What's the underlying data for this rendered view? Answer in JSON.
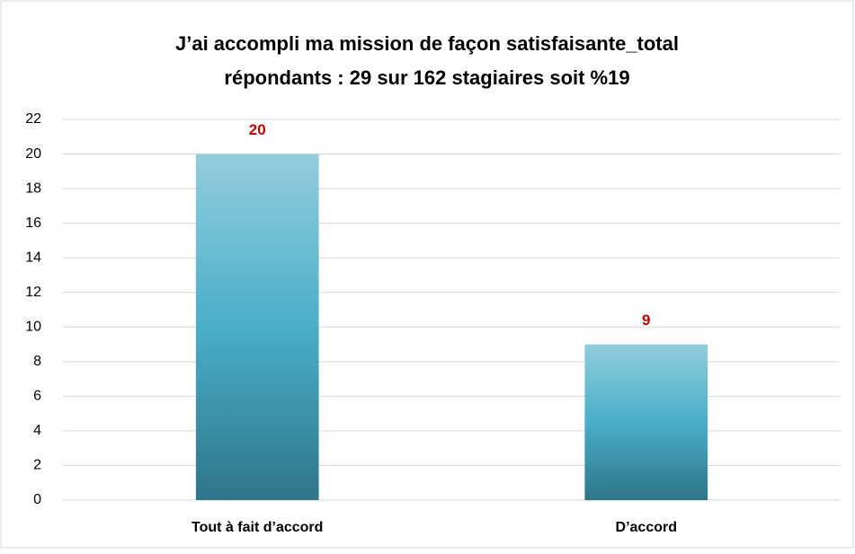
{
  "chart_data": {
    "type": "bar",
    "title": "J’ai accompli ma mission de façon satisfaisante_total",
    "subtitle": "répondants : 29 sur 162 stagiaires soit %19",
    "categories": [
      "Tout à fait d’accord",
      "D’accord"
    ],
    "values": [
      20,
      9
    ],
    "color": "#4aaec9",
    "label_color": "#c00000",
    "ylim": [
      0,
      22
    ],
    "yticks": [
      0,
      2,
      4,
      6,
      8,
      10,
      12,
      14,
      16,
      18,
      20,
      22
    ],
    "grid": true
  }
}
